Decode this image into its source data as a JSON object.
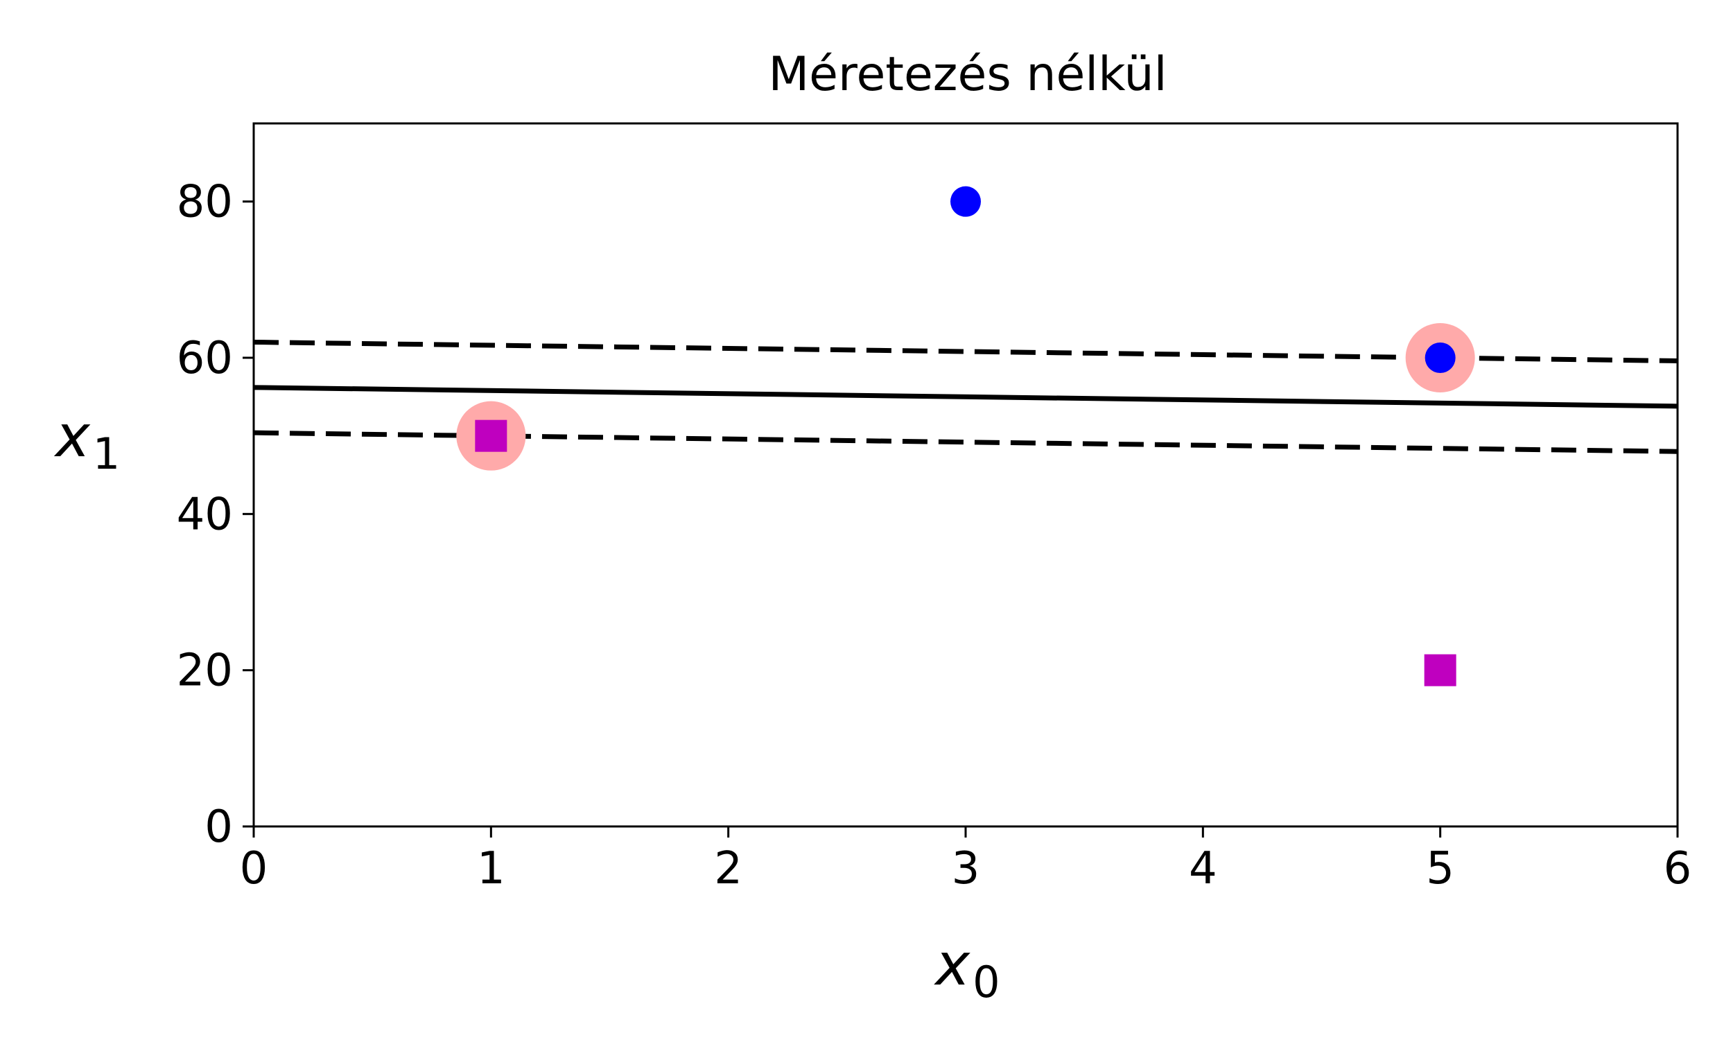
{
  "chart_data": {
    "type": "scatter",
    "title": "Méretezés nélkül",
    "xlabel": {
      "base": "x",
      "sub": "0"
    },
    "ylabel": {
      "base": "x",
      "sub": "1"
    },
    "xlim": [
      0,
      6
    ],
    "ylim": [
      0,
      90
    ],
    "xticks": [
      0,
      1,
      2,
      3,
      4,
      5,
      6
    ],
    "yticks": [
      0,
      20,
      40,
      60,
      80
    ],
    "grid": false,
    "legend": "none",
    "colors": {
      "class_circle": "#0000ff",
      "class_square": "#bf00bf",
      "support_vector_highlight": "#ffaaaa",
      "lines": "#000000"
    },
    "points": [
      {
        "x": 3,
        "y": 80,
        "marker": "circle",
        "class": 1
      },
      {
        "x": 5,
        "y": 60,
        "marker": "circle",
        "class": 1
      },
      {
        "x": 1,
        "y": 50,
        "marker": "square",
        "class": 0
      },
      {
        "x": 5,
        "y": 20,
        "marker": "square",
        "class": 0
      }
    ],
    "support_vectors": [
      {
        "x": 1,
        "y": 50
      },
      {
        "x": 5,
        "y": 60
      }
    ],
    "decision_boundary": {
      "style": "solid",
      "points": [
        [
          0,
          56.2
        ],
        [
          6,
          53.8
        ]
      ]
    },
    "margins": [
      {
        "style": "dashed",
        "points": [
          [
            0,
            62.0
          ],
          [
            6,
            59.6
          ]
        ]
      },
      {
        "style": "dashed",
        "points": [
          [
            0,
            50.4
          ],
          [
            6,
            48.0
          ]
        ]
      }
    ]
  }
}
